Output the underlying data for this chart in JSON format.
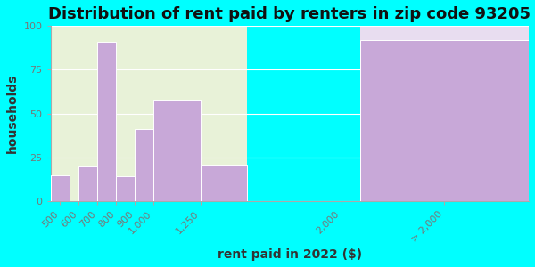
{
  "title": "Distribution of rent paid by renters in zip code 93205",
  "xlabel": "rent paid in 2022 ($)",
  "ylabel": "households",
  "background_color": "#00FFFF",
  "plot_bg_color_left": "#e8f2d8",
  "plot_bg_color_right": "#e8ddf0",
  "bar_color": "#c8a8d8",
  "bar_edge_color": "#ffffff",
  "tick_color": "#777777",
  "spine_color": "#aaaaaa",
  "title_color": "#111111",
  "label_color": "#333333",
  "ylim": [
    0,
    100
  ],
  "yticks": [
    0,
    25,
    50,
    75,
    100
  ],
  "title_fontsize": 13,
  "axis_label_fontsize": 10,
  "tick_fontsize": 8,
  "bin_edges": [
    450,
    550,
    600,
    700,
    800,
    900,
    1000,
    1250,
    1500,
    2000,
    2100,
    3000
  ],
  "values": [
    15,
    0,
    20,
    91,
    14,
    41,
    58,
    21,
    0,
    0,
    92
  ],
  "xtick_positions": [
    500,
    600,
    700,
    800,
    900,
    1000,
    1250,
    2000
  ],
  "xtick_labels": [
    "500",
    "600",
    "700",
    "800",
    "900",
    "1,000",
    "1,250",
    "2,000"
  ],
  "left_bg_end": 1500,
  "right_bg_start": 2100,
  "xmin": 450,
  "xmax": 3000
}
